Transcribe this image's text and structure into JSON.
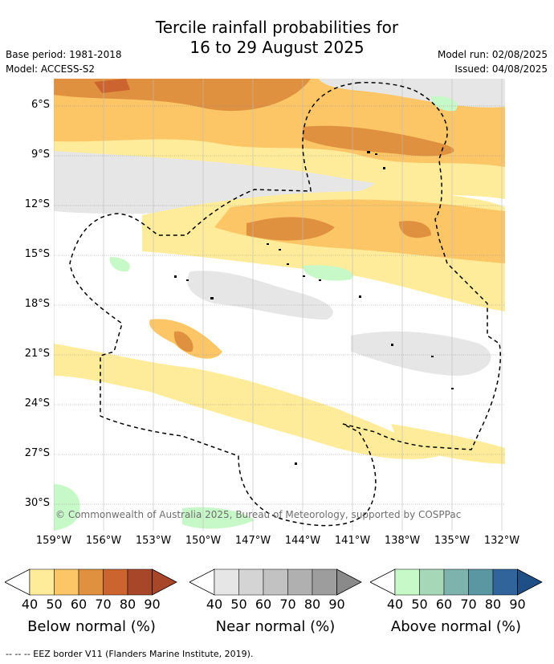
{
  "title": {
    "line1": "Tercile rainfall probabilities for",
    "line2": "16 to 29 August 2025"
  },
  "meta": {
    "base_period": "Base period: 1981-2018",
    "model": "Model: ACCESS-S2",
    "model_run": "Model run: 02/08/2025",
    "issued": "Issued: 04/08/2025"
  },
  "map": {
    "copyright": "© Commonwealth of Australia 2025, Bureau of Meteorology, supported by COSPPac",
    "y_ticks": [
      "6°S",
      "9°S",
      "12°S",
      "15°S",
      "18°S",
      "21°S",
      "24°S",
      "27°S",
      "30°S"
    ],
    "x_ticks": [
      "159°W",
      "156°W",
      "153°W",
      "150°W",
      "147°W",
      "144°W",
      "141°W",
      "138°W",
      "135°W",
      "132°W"
    ]
  },
  "legends": [
    {
      "title": "Below normal (%)",
      "ticks": [
        "40",
        "50",
        "60",
        "70",
        "80",
        "90"
      ],
      "colors": [
        "#ffec9b",
        "#fcc666",
        "#e0913f",
        "#cc6430",
        "#a8462a",
        "#a8462a"
      ]
    },
    {
      "title": "Near normal (%)",
      "ticks": [
        "40",
        "50",
        "60",
        "70",
        "80",
        "90"
      ],
      "colors": [
        "#e6e6e6",
        "#d4d4d4",
        "#c2c2c2",
        "#b0b0b0",
        "#9d9d9d",
        "#8a8a8a"
      ]
    },
    {
      "title": "Above normal (%)",
      "ticks": [
        "40",
        "50",
        "60",
        "70",
        "80",
        "90"
      ],
      "colors": [
        "#c7f8c7",
        "#a6d7b7",
        "#7eb3ad",
        "#5b96a3",
        "#30649b",
        "#1e4f86"
      ]
    }
  ],
  "footer": "--  --  -- EEZ border V11 (Flanders Marine Institute, 2019)."
}
